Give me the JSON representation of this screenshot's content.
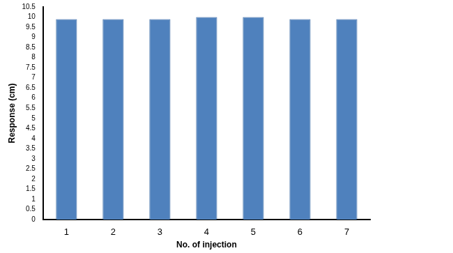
{
  "chart_data": {
    "type": "bar",
    "x_label": "No. of injection",
    "y_label": "Response (cm)",
    "categories": [
      "1",
      "2",
      "3",
      "4",
      "5",
      "6",
      "7"
    ],
    "values": [
      9.9,
      9.9,
      9.9,
      10,
      10,
      9.9,
      9.9
    ],
    "color": "#4f81bd",
    "ylim": [
      0,
      10.5
    ],
    "yticks": [
      0,
      0.5,
      1,
      1.5,
      2,
      2.5,
      3,
      3.5,
      4,
      4.5,
      5,
      5.5,
      6,
      6.5,
      7,
      7.5,
      8,
      8.5,
      9,
      9.5,
      10,
      10.5
    ],
    "grid": false
  }
}
